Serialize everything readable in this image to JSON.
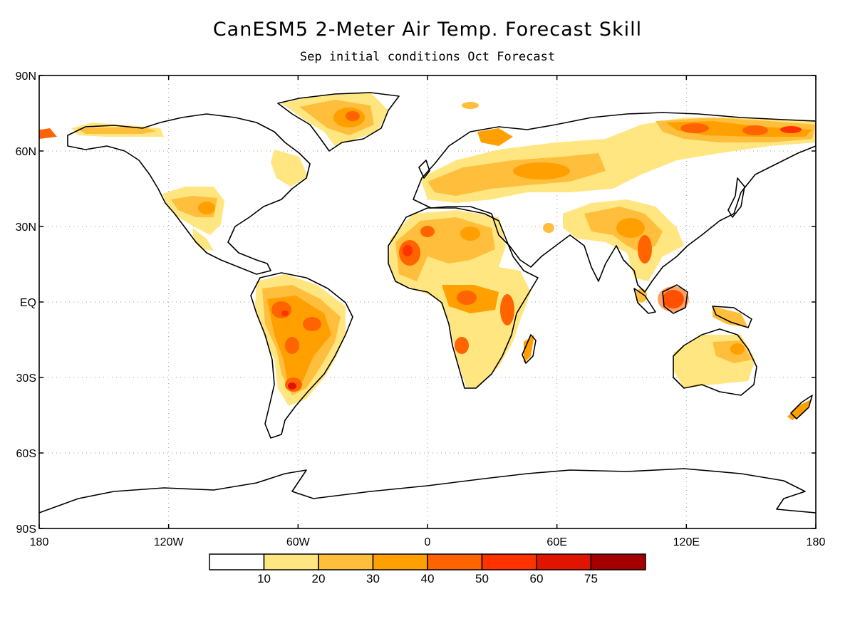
{
  "title": "CanESM5 2-Meter Air Temp. Forecast Skill",
  "subtitle": "Sep initial conditions  Oct Forecast",
  "map": {
    "lon_range": [
      -180,
      180
    ],
    "lat_range": [
      -90,
      90
    ],
    "lat_ticks": [
      {
        "value": 90,
        "label": "90N"
      },
      {
        "value": 60,
        "label": "60N"
      },
      {
        "value": 30,
        "label": "30N"
      },
      {
        "value": 0,
        "label": "EQ"
      },
      {
        "value": -30,
        "label": "30S"
      },
      {
        "value": -60,
        "label": "60S"
      },
      {
        "value": -90,
        "label": "90S"
      }
    ],
    "lon_ticks": [
      {
        "value": -180,
        "label": "180"
      },
      {
        "value": -120,
        "label": "120W"
      },
      {
        "value": -60,
        "label": "60W"
      },
      {
        "value": 0,
        "label": "0"
      },
      {
        "value": 60,
        "label": "60E"
      },
      {
        "value": 120,
        "label": "120E"
      },
      {
        "value": 180,
        "label": "180"
      }
    ],
    "grid": true
  },
  "colorbar": {
    "colors": [
      "#ffffff",
      "#ffe680",
      "#ffbe3c",
      "#ffa000",
      "#ff6400",
      "#ff3200",
      "#e11400",
      "#a50000"
    ],
    "labels": [
      "10",
      "20",
      "30",
      "40",
      "50",
      "60",
      "75"
    ]
  }
}
